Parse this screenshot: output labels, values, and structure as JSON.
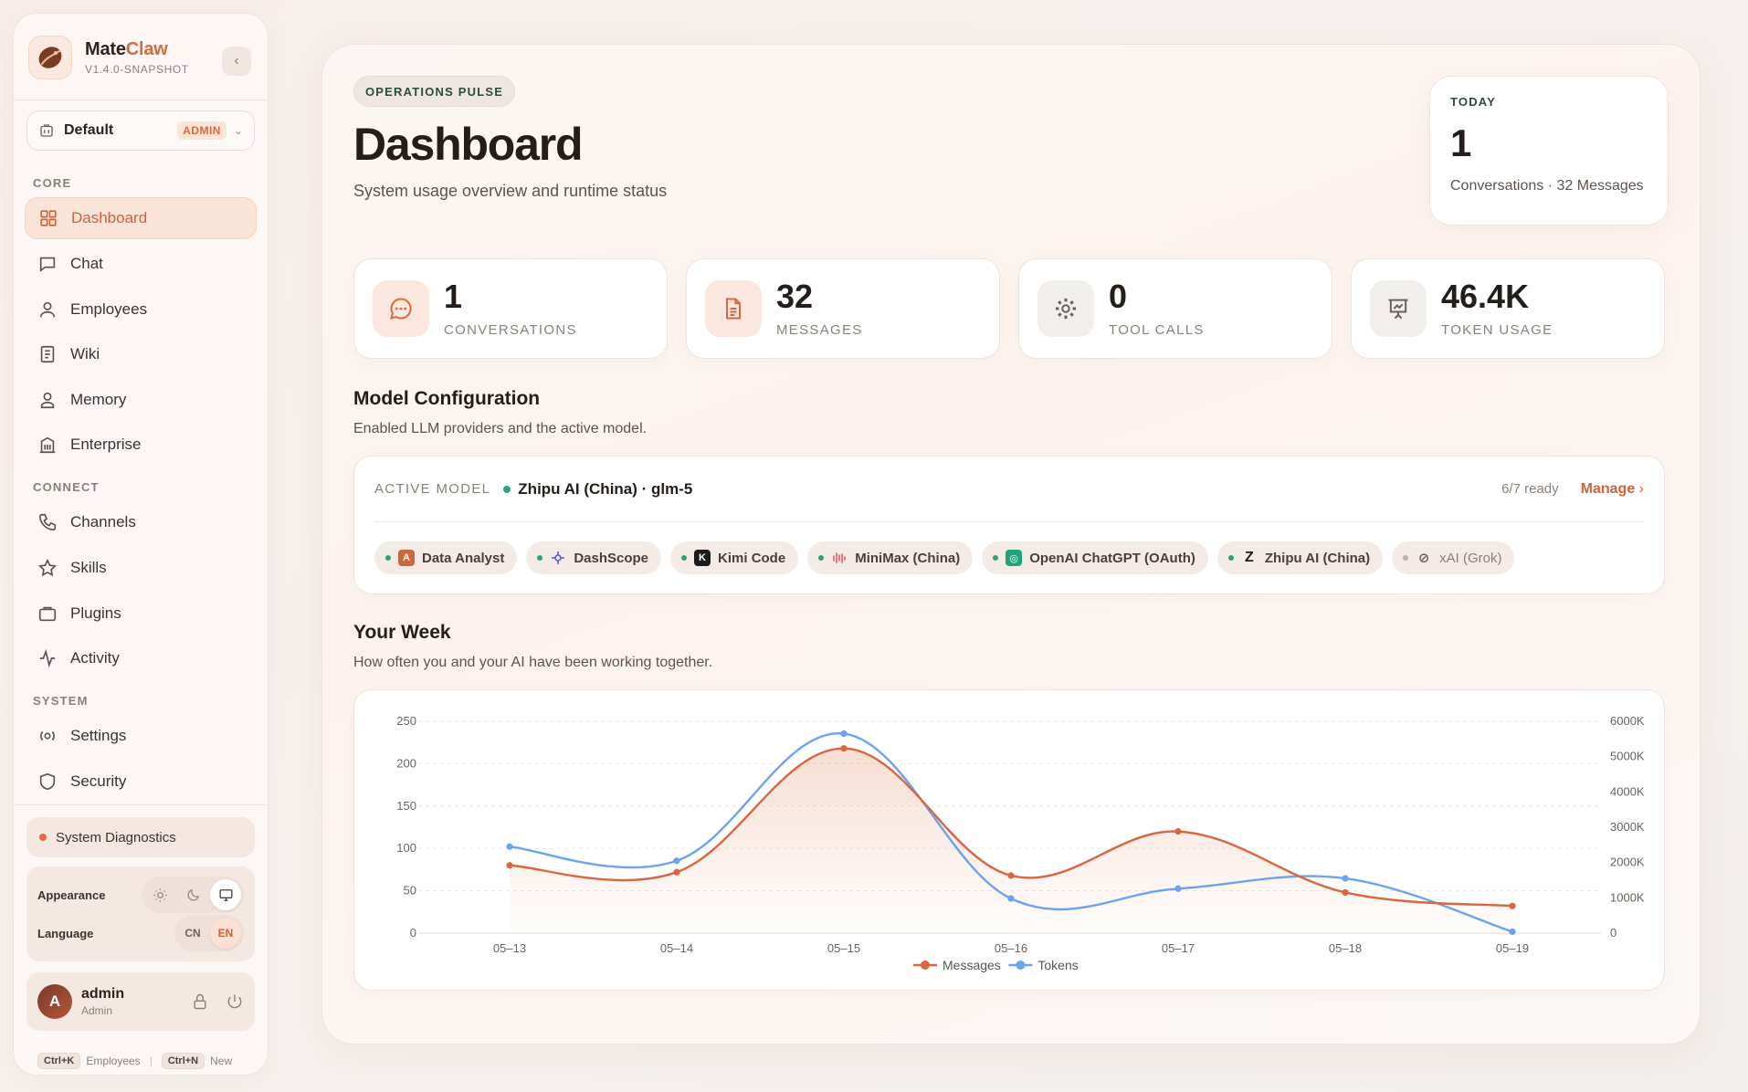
{
  "brand": {
    "name_main": "Mate",
    "name_accent": "Claw",
    "version": "V1.4.0-SNAPSHOT"
  },
  "workspace": {
    "name": "Default",
    "badge": "ADMIN"
  },
  "nav": {
    "sections": {
      "core": "CORE",
      "connect": "CONNECT",
      "system": "SYSTEM"
    },
    "items": [
      {
        "label": "Dashboard",
        "icon": "grid-icon",
        "active": true
      },
      {
        "label": "Chat",
        "icon": "chat-icon"
      },
      {
        "label": "Employees",
        "icon": "person-icon"
      },
      {
        "label": "Wiki",
        "icon": "book-icon"
      },
      {
        "label": "Memory",
        "icon": "person-icon"
      },
      {
        "label": "Enterprise",
        "icon": "building-icon"
      },
      {
        "label": "Channels",
        "icon": "phone-icon"
      },
      {
        "label": "Skills",
        "icon": "star-icon"
      },
      {
        "label": "Plugins",
        "icon": "briefcase-icon"
      },
      {
        "label": "Activity",
        "icon": "activity-icon"
      },
      {
        "label": "Settings",
        "icon": "settings-icon"
      },
      {
        "label": "Security",
        "icon": "shield-icon"
      }
    ]
  },
  "diagnostics": {
    "label": "System Diagnostics",
    "status_color": "#de6b43"
  },
  "preferences": {
    "appearance_label": "Appearance",
    "language_label": "Language",
    "languages": [
      "CN",
      "EN"
    ],
    "selected_language": "EN",
    "selected_theme": "system"
  },
  "user": {
    "name": "admin",
    "role": "Admin",
    "initial": "A"
  },
  "shortcuts": [
    {
      "keys": "Ctrl+K",
      "label": "Employees"
    },
    {
      "keys": "Ctrl+N",
      "label": "New"
    }
  ],
  "header": {
    "eyebrow": "OPERATIONS PULSE",
    "title": "Dashboard",
    "subtitle": "System usage overview and runtime status"
  },
  "today": {
    "label": "TODAY",
    "value": "1",
    "desc": "Conversations · 32 Messages"
  },
  "stats": [
    {
      "value": "1",
      "label": "CONVERSATIONS",
      "icon": "chat-bubble-icon"
    },
    {
      "value": "32",
      "label": "MESSAGES",
      "icon": "document-icon"
    },
    {
      "value": "0",
      "label": "TOOL CALLS",
      "icon": "gear-icon"
    },
    {
      "value": "46.4K",
      "label": "TOKEN USAGE",
      "icon": "presentation-icon"
    }
  ],
  "models": {
    "title": "Model Configuration",
    "subtitle": "Enabled LLM providers and the active model.",
    "active_label": "ACTIVE MODEL",
    "active_model": "Zhipu AI (China) · glm-5",
    "ready": "6/7 ready",
    "manage": "Manage",
    "providers": [
      {
        "name": "Data Analyst",
        "enabled": true
      },
      {
        "name": "DashScope",
        "enabled": true
      },
      {
        "name": "Kimi Code",
        "enabled": true
      },
      {
        "name": "MiniMax (China)",
        "enabled": true
      },
      {
        "name": "OpenAI ChatGPT (OAuth)",
        "enabled": true
      },
      {
        "name": "Zhipu AI (China)",
        "enabled": true
      },
      {
        "name": "xAI (Grok)",
        "enabled": false
      }
    ]
  },
  "week": {
    "title": "Your Week",
    "subtitle": "How often you and your AI have been working together."
  },
  "chart_data": {
    "type": "line",
    "x": [
      "05-13",
      "05-14",
      "05-15",
      "05-16",
      "05-17",
      "05-18",
      "05-19"
    ],
    "series": [
      {
        "name": "Messages",
        "axis": "left",
        "color": "#d9663e",
        "values": [
          80,
          72,
          218,
          68,
          120,
          48,
          32
        ]
      },
      {
        "name": "Tokens",
        "axis": "right",
        "color": "#6aa4ee",
        "values": [
          2450,
          2050,
          5650,
          980,
          1260,
          1550,
          40
        ]
      }
    ],
    "ylim_left": [
      0,
      250
    ],
    "yticks_left": [
      0,
      50,
      100,
      150,
      200,
      250
    ],
    "ylim_right": [
      0,
      6000
    ],
    "yticks_right": [
      "0",
      "1000K",
      "2000K",
      "3000K",
      "4000K",
      "5000K",
      "6000K"
    ],
    "grid": true,
    "legend": "bottom-center",
    "area_fill": "Messages"
  }
}
